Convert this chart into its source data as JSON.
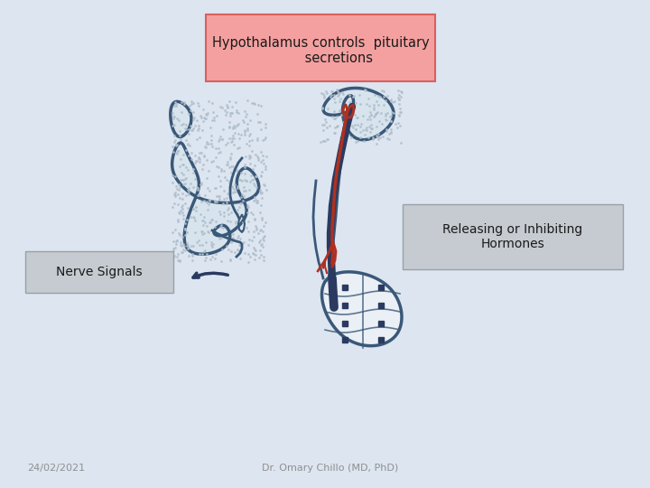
{
  "bg_color": "#dce5f0",
  "title_text": "Hypothalamus controls  pituitary\n         secretions",
  "title_box_facecolor": "#f5a0a0",
  "title_box_edgecolor": "#d96060",
  "label1_text": "Releasing or Inhibiting\nHormones",
  "label2_text": "Nerve Signals",
  "date_text": "24/02/2021",
  "author_text": "Dr. Omary Chillo (MD, PhD)",
  "body_fill": "#d8e4ed",
  "body_fill2": "#eaf0f5",
  "dot_color": "#b0bfcc",
  "outline_color": "#3a5878",
  "red_color": "#b03020",
  "dark_blue": "#2a3a60",
  "label_box_facecolor": "#c5cbd1",
  "label_box_edgecolor": "#9aa0a8",
  "label_box_grad_top": "#d8dde2",
  "label_box_grad_bot": "#a8b0b8"
}
